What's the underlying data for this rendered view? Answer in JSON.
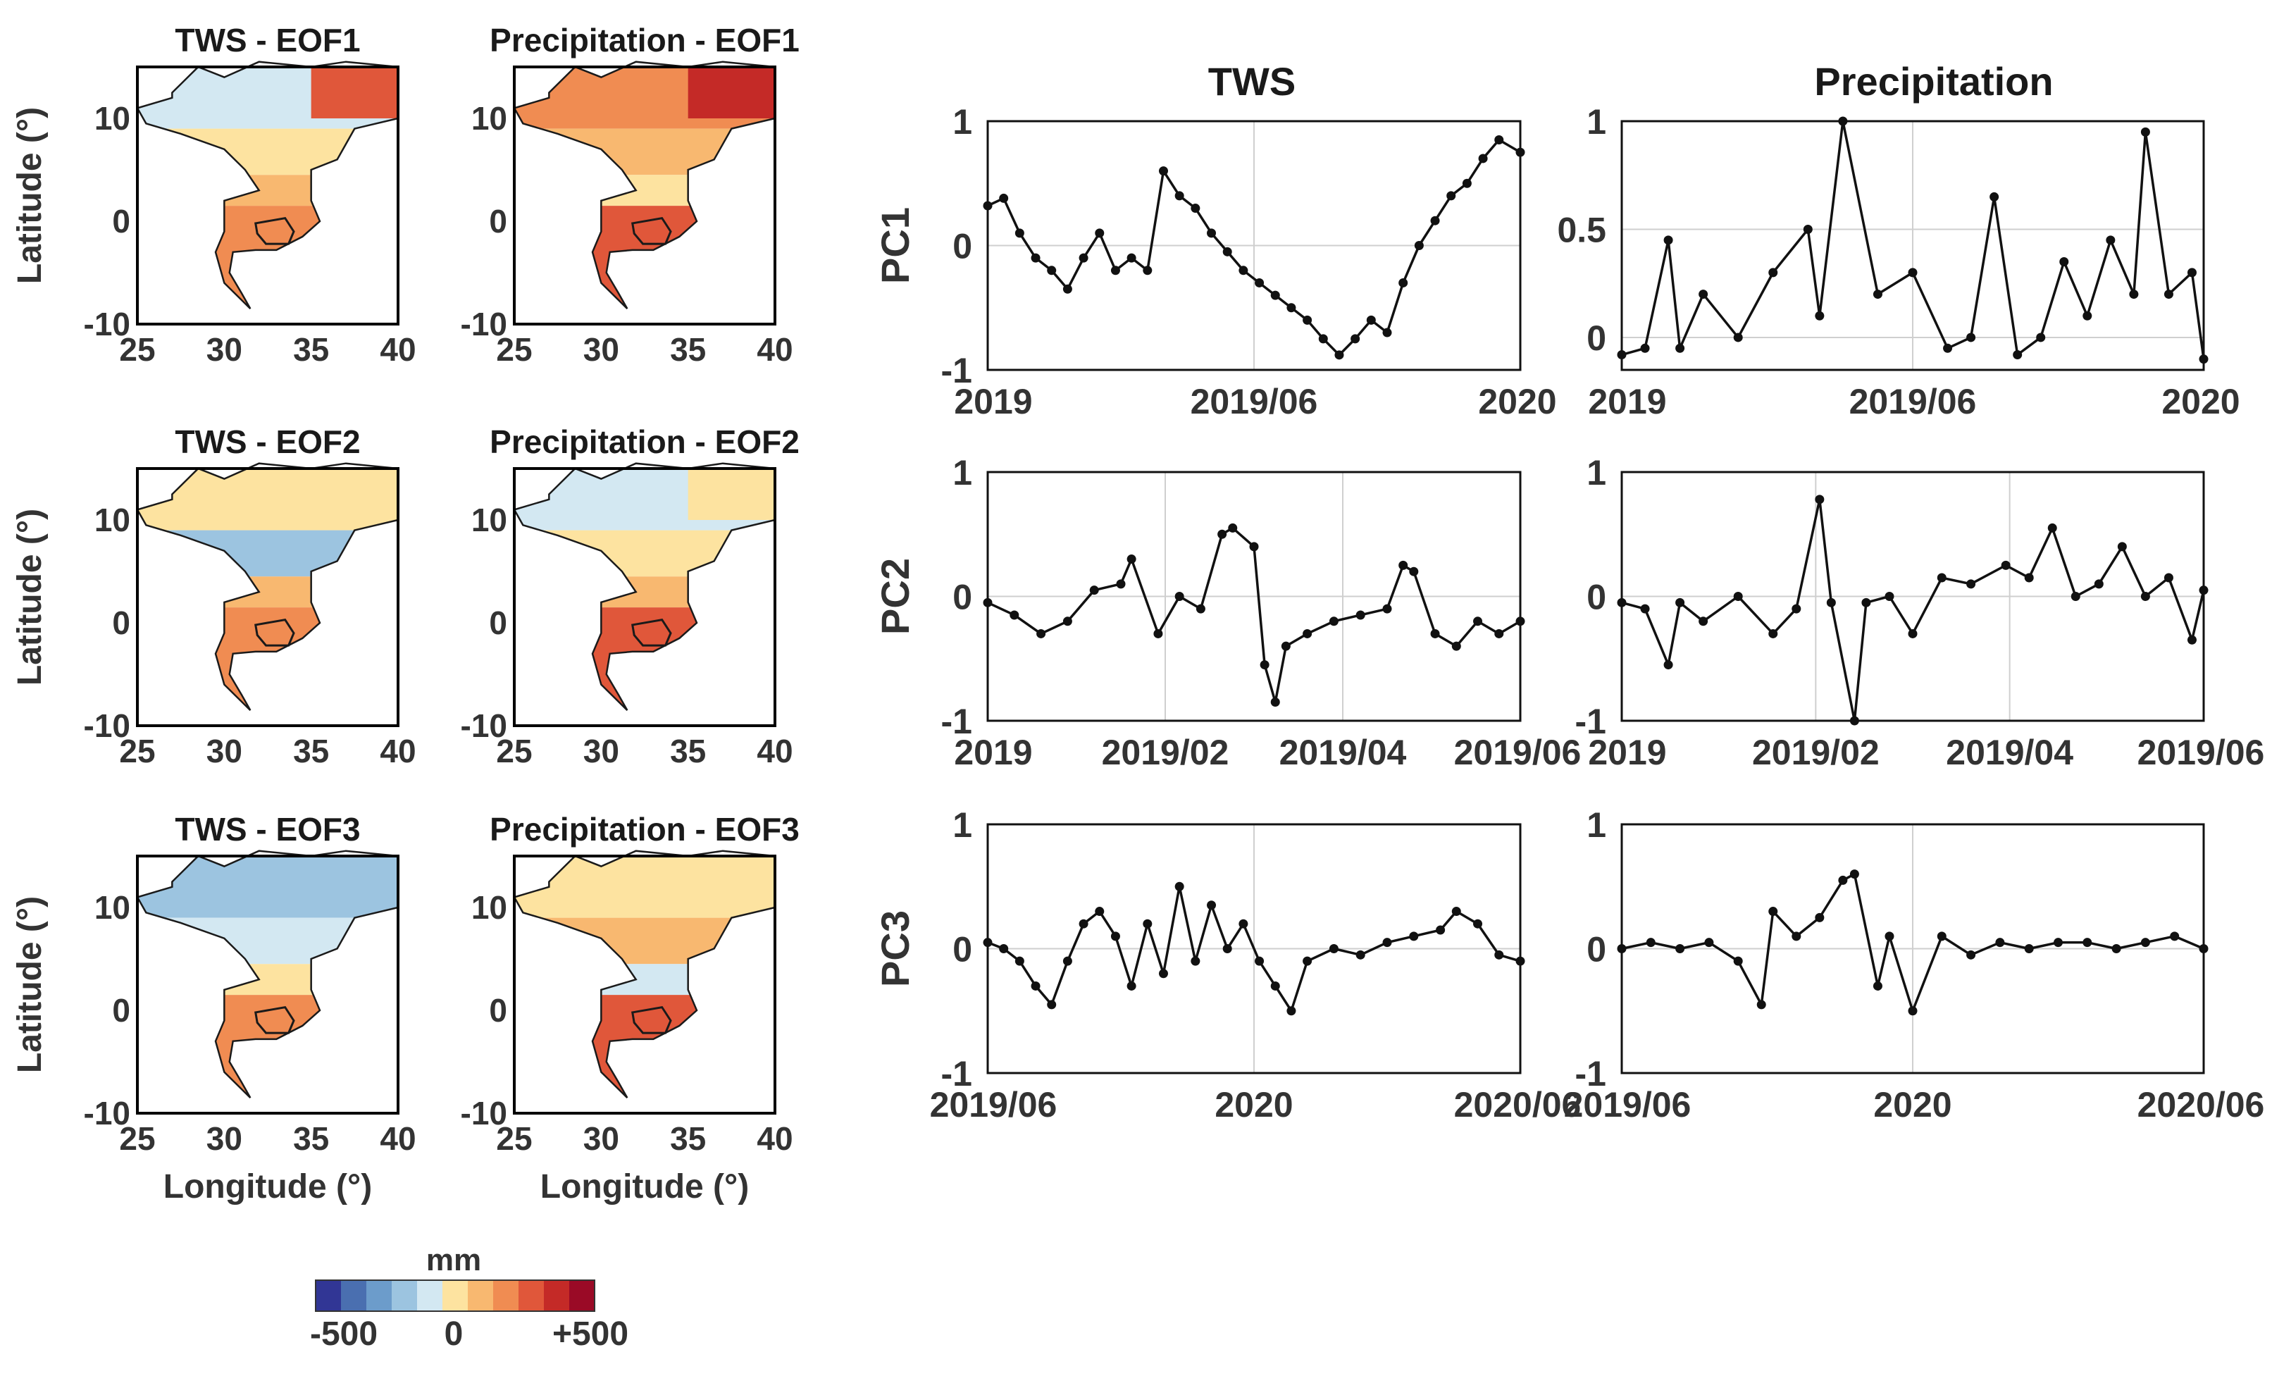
{
  "figure": {
    "map_titles": [
      "TWS - EOF1",
      "Precipitation - EOF1",
      "TWS - EOF2",
      "Precipitation - EOF2",
      "TWS - EOF3",
      "Precipitation - EOF3"
    ],
    "map_ylabel": "Latitude (°)",
    "map_xlabel": "Longitude (°)",
    "map_xticks": [
      "25",
      "30",
      "35",
      "40"
    ],
    "map_yticks": [
      "10",
      "0",
      "-10"
    ],
    "colorbar": {
      "unit": "mm",
      "tick_labels": [
        "-500",
        "0",
        "+500"
      ],
      "colors": [
        "#313695",
        "#4a6fb0",
        "#6c9ccb",
        "#9cc4e0",
        "#d3e8f2",
        "#fde3a0",
        "#f8b870",
        "#f08c52",
        "#e0573a",
        "#c42a27",
        "#9a0a26"
      ]
    },
    "column_titles": [
      "TWS",
      "Precipitation"
    ],
    "pc_labels": [
      "PC1",
      "PC2",
      "PC3"
    ]
  },
  "chart_data": [
    {
      "type": "line",
      "panel": "TWS PC1",
      "ylabel": "PC1",
      "ylim": [
        -1,
        1
      ],
      "yticks": [
        "1",
        "0",
        "-1"
      ],
      "xticks": [
        "2019",
        "2019/06",
        "2020"
      ],
      "x": [
        0,
        0.03,
        0.06,
        0.09,
        0.12,
        0.15,
        0.18,
        0.21,
        0.24,
        0.27,
        0.3,
        0.33,
        0.36,
        0.39,
        0.42,
        0.45,
        0.48,
        0.51,
        0.54,
        0.57,
        0.6,
        0.63,
        0.66,
        0.69,
        0.72,
        0.75,
        0.78,
        0.81,
        0.84,
        0.87,
        0.9,
        0.93,
        0.96,
        1.0
      ],
      "values": [
        0.32,
        0.38,
        0.1,
        -0.1,
        -0.2,
        -0.35,
        -0.1,
        0.1,
        -0.2,
        -0.1,
        -0.2,
        0.6,
        0.4,
        0.3,
        0.1,
        -0.05,
        -0.2,
        -0.3,
        -0.4,
        -0.5,
        -0.6,
        -0.75,
        -0.88,
        -0.75,
        -0.6,
        -0.7,
        -0.3,
        0.0,
        0.2,
        0.4,
        0.5,
        0.7,
        0.85,
        0.75
      ]
    },
    {
      "type": "line",
      "panel": "Precipitation PC1",
      "ylim": [
        -0.15,
        1
      ],
      "yticks": [
        "1",
        "0.5",
        "0"
      ],
      "xticks": [
        "2019",
        "2019/06",
        "2020"
      ],
      "x": [
        0,
        0.04,
        0.08,
        0.1,
        0.14,
        0.2,
        0.26,
        0.32,
        0.34,
        0.38,
        0.44,
        0.5,
        0.56,
        0.6,
        0.64,
        0.68,
        0.72,
        0.76,
        0.8,
        0.84,
        0.88,
        0.9,
        0.94,
        0.98,
        1.0
      ],
      "values": [
        -0.08,
        -0.05,
        0.45,
        -0.05,
        0.2,
        0.0,
        0.3,
        0.5,
        0.1,
        1.0,
        0.2,
        0.3,
        -0.05,
        0.0,
        0.65,
        -0.08,
        0.0,
        0.35,
        0.1,
        0.45,
        0.2,
        0.95,
        0.2,
        0.3,
        -0.1
      ]
    },
    {
      "type": "line",
      "panel": "TWS PC2",
      "ylabel": "PC2",
      "ylim": [
        -1,
        1
      ],
      "yticks": [
        "1",
        "0",
        "-1"
      ],
      "xticks": [
        "2019",
        "2019/02",
        "2019/04",
        "2019/06"
      ],
      "x": [
        0,
        0.05,
        0.1,
        0.15,
        0.2,
        0.25,
        0.27,
        0.32,
        0.36,
        0.4,
        0.44,
        0.46,
        0.5,
        0.52,
        0.54,
        0.56,
        0.6,
        0.65,
        0.7,
        0.75,
        0.78,
        0.8,
        0.84,
        0.88,
        0.92,
        0.96,
        1.0
      ],
      "values": [
        -0.05,
        -0.15,
        -0.3,
        -0.2,
        0.05,
        0.1,
        0.3,
        -0.3,
        0.0,
        -0.1,
        0.5,
        0.55,
        0.4,
        -0.55,
        -0.85,
        -0.4,
        -0.3,
        -0.2,
        -0.15,
        -0.1,
        0.25,
        0.2,
        -0.3,
        -0.4,
        -0.2,
        -0.3,
        -0.2
      ]
    },
    {
      "type": "line",
      "panel": "Precipitation PC2",
      "ylim": [
        -1,
        1
      ],
      "yticks": [
        "1",
        "0",
        "-1"
      ],
      "xticks": [
        "2019",
        "2019/02",
        "2019/04",
        "2019/06"
      ],
      "x": [
        0,
        0.04,
        0.08,
        0.1,
        0.14,
        0.2,
        0.26,
        0.3,
        0.34,
        0.36,
        0.4,
        0.42,
        0.46,
        0.5,
        0.55,
        0.6,
        0.66,
        0.7,
        0.74,
        0.78,
        0.82,
        0.86,
        0.9,
        0.94,
        0.98,
        1.0
      ],
      "values": [
        -0.05,
        -0.1,
        -0.55,
        -0.05,
        -0.2,
        0.0,
        -0.3,
        -0.1,
        0.78,
        -0.05,
        -1.0,
        -0.05,
        0.0,
        -0.3,
        0.15,
        0.1,
        0.25,
        0.15,
        0.55,
        0.0,
        0.1,
        0.4,
        0.0,
        0.15,
        -0.35,
        0.05
      ]
    },
    {
      "type": "line",
      "panel": "TWS PC3",
      "ylabel": "PC3",
      "ylim": [
        -1,
        1
      ],
      "yticks": [
        "1",
        "0",
        "-1"
      ],
      "xticks": [
        "2019/06",
        "2020",
        "2020/06"
      ],
      "x": [
        0,
        0.03,
        0.06,
        0.09,
        0.12,
        0.15,
        0.18,
        0.21,
        0.24,
        0.27,
        0.3,
        0.33,
        0.36,
        0.39,
        0.42,
        0.45,
        0.48,
        0.51,
        0.54,
        0.57,
        0.6,
        0.65,
        0.7,
        0.75,
        0.8,
        0.85,
        0.88,
        0.92,
        0.96,
        1.0
      ],
      "values": [
        0.05,
        0.0,
        -0.1,
        -0.3,
        -0.45,
        -0.1,
        0.2,
        0.3,
        0.1,
        -0.3,
        0.2,
        -0.2,
        0.5,
        -0.1,
        0.35,
        0.0,
        0.2,
        -0.1,
        -0.3,
        -0.5,
        -0.1,
        0.0,
        -0.05,
        0.05,
        0.1,
        0.15,
        0.3,
        0.2,
        -0.05,
        -0.1
      ]
    },
    {
      "type": "line",
      "panel": "Precipitation PC3",
      "ylim": [
        -1,
        1
      ],
      "yticks": [
        "1",
        "0",
        "-1"
      ],
      "xticks": [
        "2019/06",
        "2020",
        "2020/06"
      ],
      "x": [
        0,
        0.05,
        0.1,
        0.15,
        0.2,
        0.24,
        0.26,
        0.3,
        0.34,
        0.38,
        0.4,
        0.44,
        0.46,
        0.5,
        0.55,
        0.6,
        0.65,
        0.7,
        0.75,
        0.8,
        0.85,
        0.9,
        0.95,
        1.0
      ],
      "values": [
        0.0,
        0.05,
        0.0,
        0.05,
        -0.1,
        -0.45,
        0.3,
        0.1,
        0.25,
        0.55,
        0.6,
        -0.3,
        0.1,
        -0.5,
        0.1,
        -0.05,
        0.05,
        0.0,
        0.05,
        0.05,
        0.0,
        0.05,
        0.1,
        0.0
      ]
    }
  ]
}
